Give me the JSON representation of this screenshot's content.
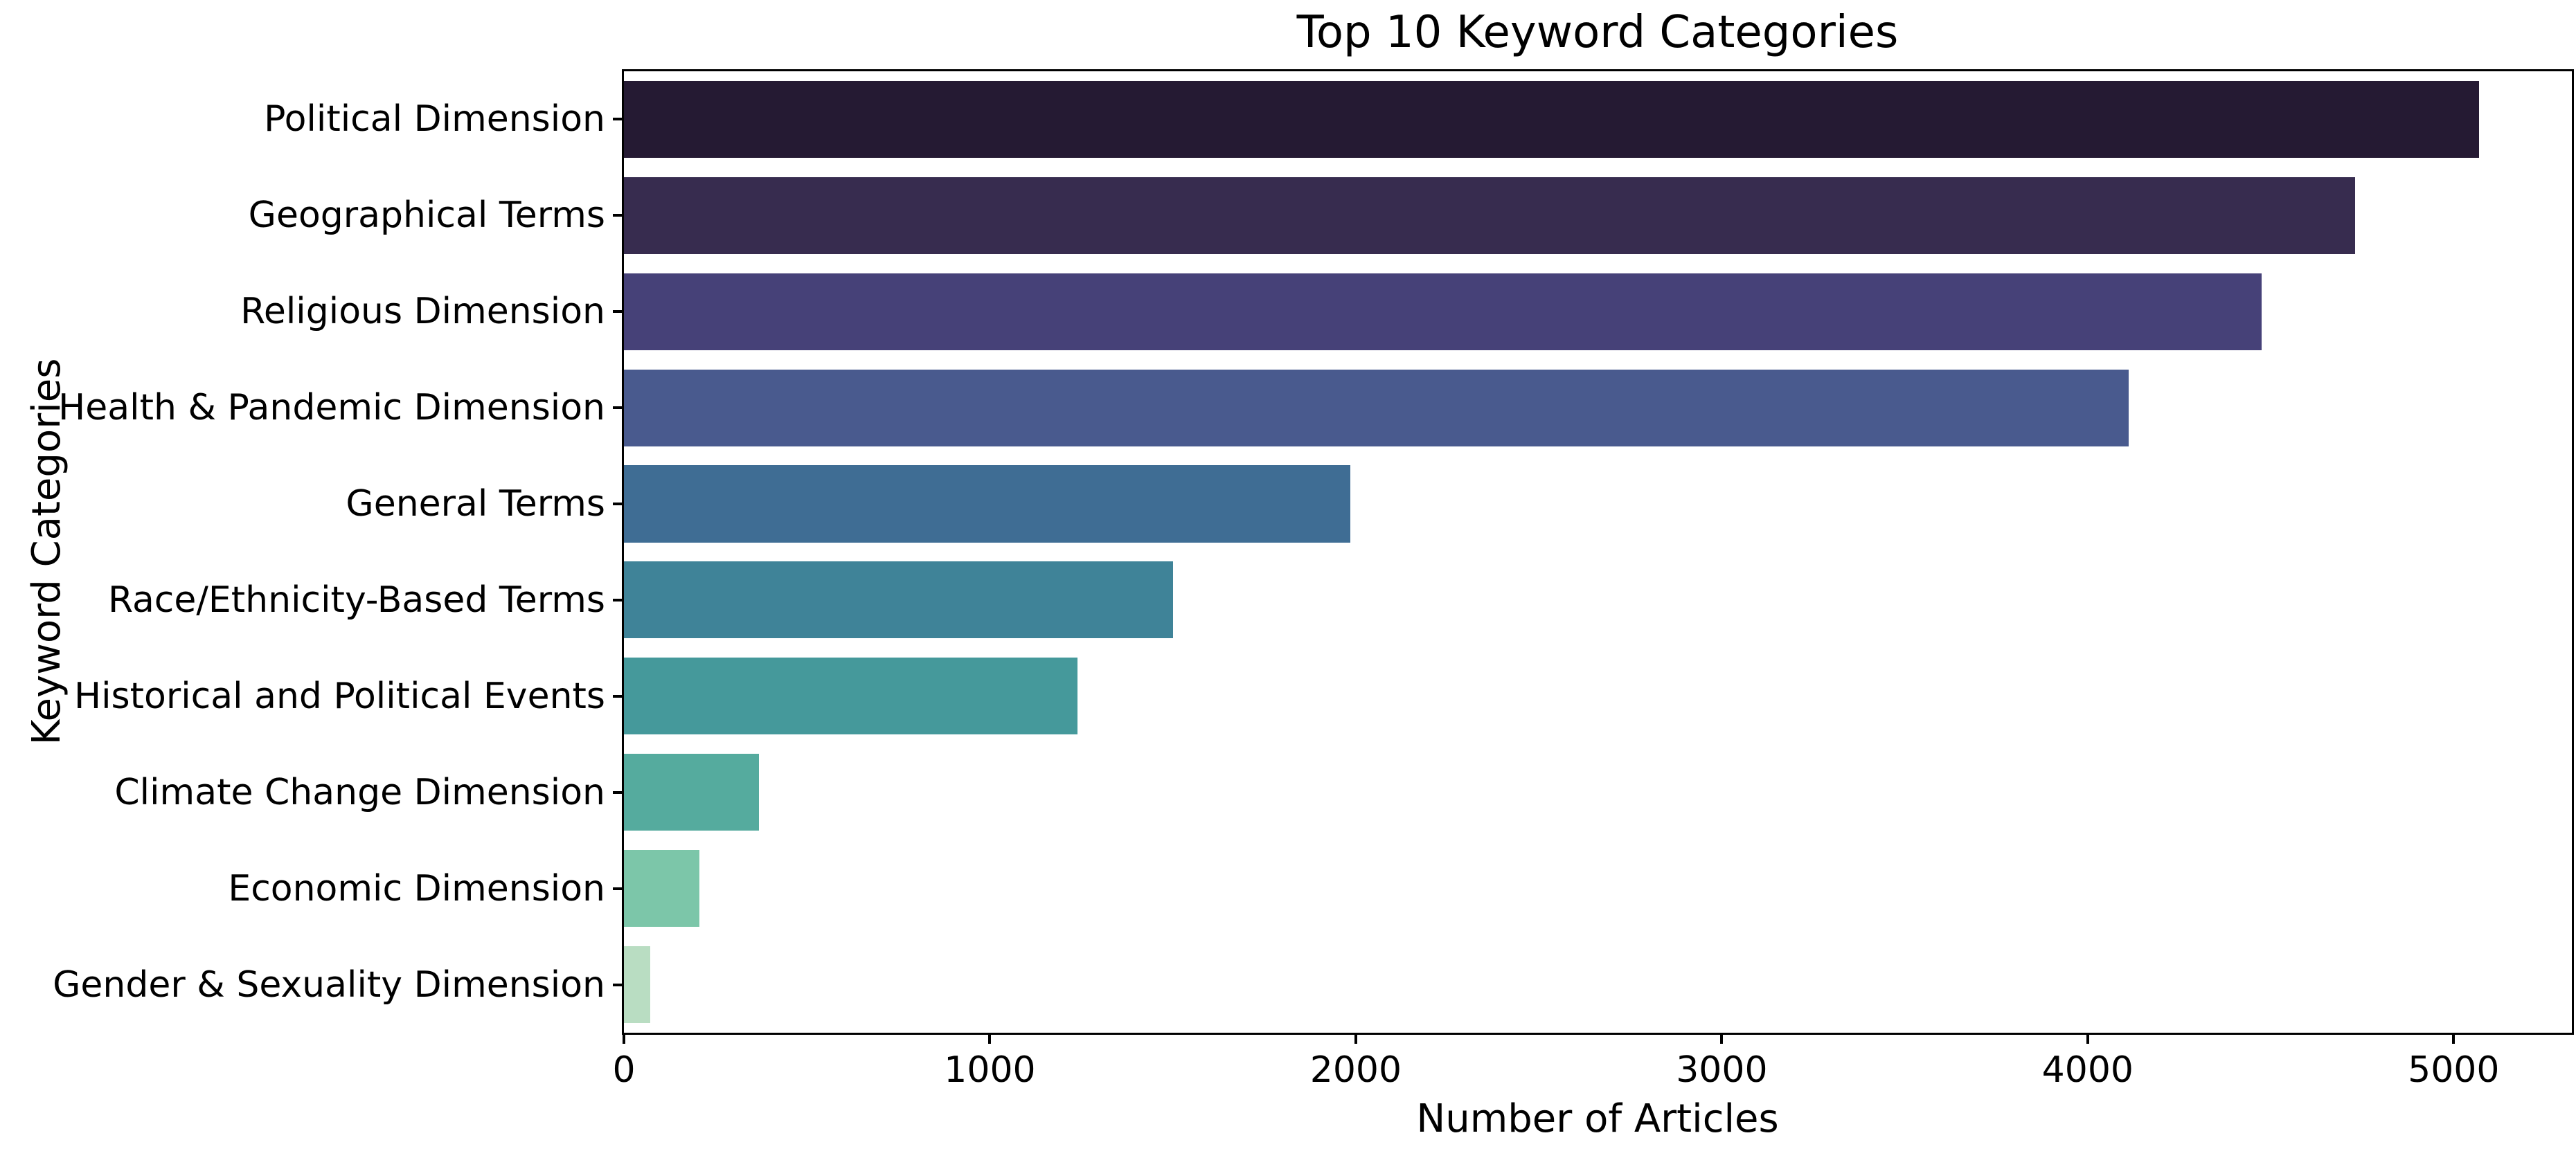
{
  "figure": {
    "background": "#ffffff",
    "text_color": "#000000",
    "spine_color": "#000000"
  },
  "chart_data": {
    "type": "bar",
    "orientation": "horizontal",
    "title": "Top 10 Keyword Categories",
    "xlabel": "Number of Articles",
    "ylabel": "Keyword Categories",
    "categories": [
      "Political Dimension",
      "Geographical Terms",
      "Religious Dimension",
      "Health & Pandemic Dimension",
      "General Terms",
      "Race/Ethnicity-Based Terms",
      "Historical and Political Events",
      "Climate Change Dimension",
      "Economic Dimension",
      "Gender & Sexuality Dimension"
    ],
    "values": [
      5070,
      4730,
      4475,
      4112,
      1985,
      1500,
      1240,
      369,
      207,
      72
    ],
    "bar_colors": [
      "#251a33",
      "#372c4f",
      "#464178",
      "#495a8e",
      "#3f6d94",
      "#3f8398",
      "#45999b",
      "#55ab9e",
      "#7cc6a9",
      "#b9ddc2"
    ],
    "x_ticks": [
      0,
      1000,
      2000,
      3000,
      4000,
      5000
    ],
    "x_tick_labels": [
      "0",
      "1000",
      "2000",
      "3000",
      "4000",
      "5000"
    ],
    "xlim": [
      0,
      5323
    ],
    "grid": false,
    "legend": "none",
    "palette": "mako",
    "bar_fraction": 0.8
  }
}
